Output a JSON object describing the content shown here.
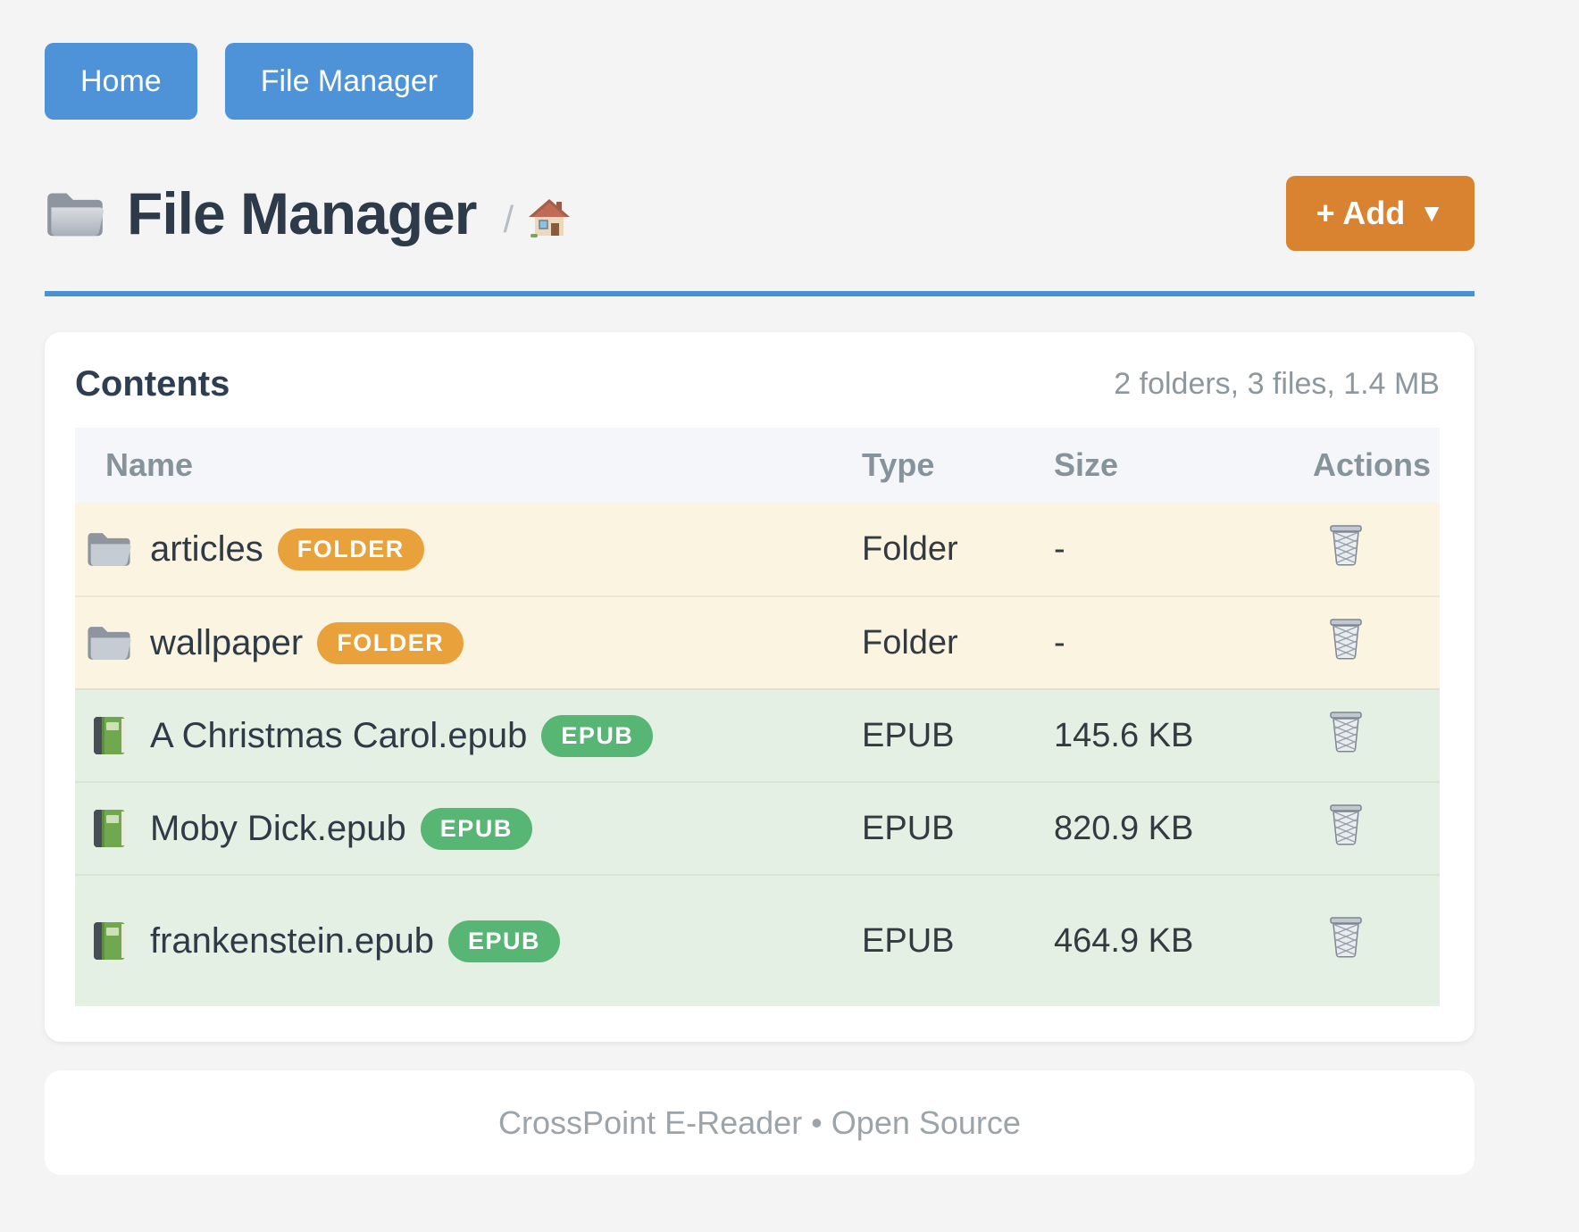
{
  "nav": {
    "buttons": [
      {
        "label": "Home"
      },
      {
        "label": "File Manager"
      }
    ]
  },
  "header": {
    "title": "File Manager",
    "title_icon": "folder-icon",
    "breadcrumb_separator": "/",
    "breadcrumb_home_icon": "house-icon",
    "add_button": {
      "label": "+ Add",
      "caret": "▼",
      "caret_icon": "caret-down-icon"
    }
  },
  "card": {
    "heading": "Contents",
    "summary": "2 folders, 3 files, 1.4 MB",
    "table": {
      "columns": [
        "Name",
        "Type",
        "Size",
        "Actions"
      ],
      "rows": [
        {
          "name": "articles",
          "icon": "folder-icon",
          "badge": "FOLDER",
          "badge_color": "#e9a23b",
          "row_bg": "#fbf4e1",
          "type": "Folder",
          "size": "-",
          "action_icon": "trash-icon"
        },
        {
          "name": "wallpaper",
          "icon": "folder-icon",
          "badge": "FOLDER",
          "badge_color": "#e9a23b",
          "row_bg": "#fbf4e1",
          "type": "Folder",
          "size": "-",
          "action_icon": "trash-icon"
        },
        {
          "name": "A Christmas Carol.epub",
          "icon": "book-icon",
          "badge": "EPUB",
          "badge_color": "#57b674",
          "row_bg": "#e4f0e4",
          "type": "EPUB",
          "size": "145.6 KB",
          "action_icon": "trash-icon"
        },
        {
          "name": "Moby Dick.epub",
          "icon": "book-icon",
          "badge": "EPUB",
          "badge_color": "#57b674",
          "row_bg": "#e4f0e4",
          "type": "EPUB",
          "size": "820.9 KB",
          "action_icon": "trash-icon"
        },
        {
          "name": "frankenstein.epub",
          "icon": "book-icon",
          "badge": "EPUB",
          "badge_color": "#57b674",
          "row_bg": "#e4f0e4",
          "type": "EPUB",
          "size": "464.9 KB",
          "action_icon": "trash-icon"
        }
      ]
    }
  },
  "footer": {
    "text": "CrossPoint E-Reader • Open Source"
  },
  "colors": {
    "primary_blue": "#4e93d8",
    "rule_blue": "#4a90d5",
    "accent_orange": "#d9822f",
    "folder_badge": "#e9a23b",
    "epub_badge": "#57b674",
    "folder_row_bg": "#fbf4e1",
    "file_row_bg": "#e4f0e4",
    "page_bg": "#f4f4f5"
  }
}
